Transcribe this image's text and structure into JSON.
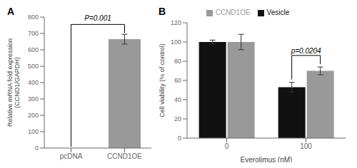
{
  "chart_data": [
    {
      "type": "bar",
      "title": "A",
      "categories": [
        "pcDNA",
        "CCND1OE"
      ],
      "values": [
        0,
        665
      ],
      "errors": [
        0,
        30
      ],
      "color": "#999999",
      "ylabel": "Relative mRNA fold expression\n(CCND1/GAPDH)",
      "ylim": [
        0,
        800
      ],
      "yticks": [
        0,
        100,
        200,
        300,
        400,
        500,
        600,
        700,
        800
      ],
      "annotation": {
        "text": "P=0.001",
        "categories": [
          "pcDNA",
          "CCND1OE"
        ]
      }
    },
    {
      "type": "bar",
      "title": "B",
      "categories": [
        "0",
        "100"
      ],
      "xlabel": "Everolimus (nM)",
      "ylabel": "Cell viability (% of control)",
      "series": [
        {
          "name": "Vesicle",
          "color": "#111111",
          "values": [
            100,
            53
          ],
          "errors": [
            2,
            5
          ]
        },
        {
          "name": "CCND1OE",
          "color": "#999999",
          "values": [
            100,
            70
          ],
          "errors": [
            8,
            4
          ]
        }
      ],
      "ylim": [
        0,
        120
      ],
      "yticks": [
        0,
        20,
        40,
        60,
        80,
        100,
        120
      ],
      "legend": "top",
      "annotation": {
        "text": "p=0.0204",
        "category": "100"
      }
    }
  ]
}
